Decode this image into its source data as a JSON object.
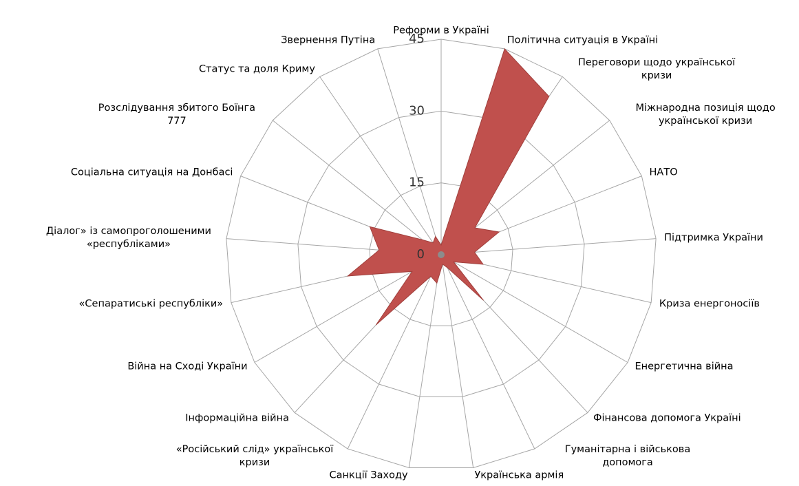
{
  "chart_data": {
    "type": "radar",
    "categories": [
      "Реформи в  Україні",
      "Політична ситуація в Україні",
      "Переговори щодо української кризи",
      "Міжнародна позиція щодо української кризи",
      "НАТО",
      "Підтримка України",
      "Криза енергоносіїв",
      "Енергетична війна",
      "Фінансова допомога Україні",
      "Гуманітарна і військова допомога",
      "Українська армія",
      "Санкції Заходу",
      "«Російський слід» української кризи",
      "Інформаційна війна",
      "Війна на Сході України",
      "«Сепаратиські республіки»",
      "Діалог» із самопроголошеними «республіками»",
      "Соціальна ситуація на Донбасі",
      "Розслідування збитого Боїнга 777",
      "Статус та доля Криму",
      "Звернення Путіна"
    ],
    "values": [
      2,
      45,
      40,
      9,
      13,
      7,
      9,
      3,
      13,
      3,
      2,
      6,
      5,
      20,
      7,
      20,
      13,
      16,
      5,
      3,
      4
    ],
    "color": "#c0504d",
    "ylim": [
      0,
      45
    ],
    "yticks": [
      0,
      15,
      30,
      45
    ],
    "grid": true
  }
}
